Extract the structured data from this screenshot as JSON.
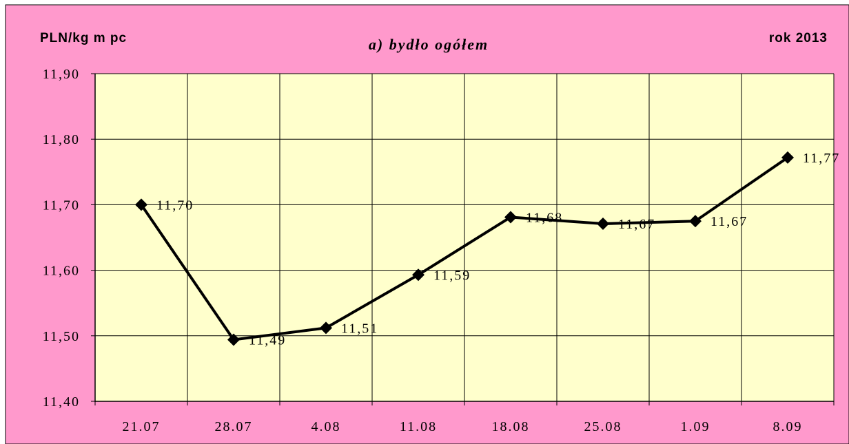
{
  "chart_data": {
    "type": "line",
    "title": "a) bydło ogółem",
    "ylabel": "PLN/kg m pc",
    "period_label": "rok 2013",
    "categories": [
      "21.07",
      "28.07",
      "4.08",
      "11.08",
      "18.08",
      "25.08",
      "1.09",
      "8.09"
    ],
    "series": [
      {
        "values": [
          11.7,
          11.494,
          11.512,
          11.593,
          11.681,
          11.671,
          11.675,
          11.772
        ],
        "labels": [
          "11,70",
          "11,49",
          "11,51",
          "11,59",
          "11,68",
          "11,67",
          "11,67",
          "11,77"
        ]
      }
    ],
    "ylim": [
      11.4,
      11.9
    ],
    "yticks": [
      "11,40",
      "11,50",
      "11,60",
      "11,70",
      "11,80",
      "11,90"
    ],
    "grid": true,
    "colors": {
      "page_background": "#ff99cc",
      "plot_background": "#ffffcc",
      "line": "#000000",
      "grid": "#000000"
    }
  }
}
